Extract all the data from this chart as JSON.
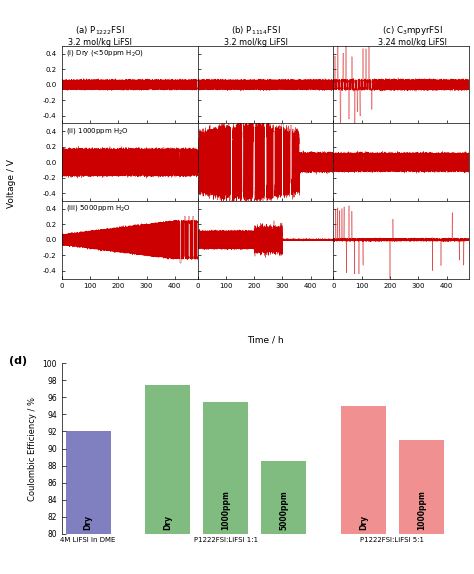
{
  "col_titles_line1": [
    "(a) P$_{1222}$FSI",
    "(b) P$_{1114}$FSI",
    "(c) C$_3$mpyrFSI"
  ],
  "col_titles_line2": [
    "3.2 mol/kg LiFSI",
    "3.2 mol/kg LiFSI",
    "3.24 mol/kg LiFSI"
  ],
  "row_labels": [
    "(i) Dry (<50ppm H$_2$O)",
    "(ii) 1000ppm H$_2$O",
    "(iii) 5000ppm H$_2$O"
  ],
  "voltage_color": "#CC0000",
  "voltage_ylim": [
    -0.5,
    0.5
  ],
  "voltage_yticks": [
    -0.4,
    -0.2,
    0.0,
    0.2,
    0.4
  ],
  "voltage_yticklabels": [
    "-0.4",
    "-0.2",
    "0.0",
    "0.2",
    "0.4"
  ],
  "time_xlim": [
    0,
    480
  ],
  "time_xticks": [
    0,
    100,
    200,
    300,
    400
  ],
  "time_xticklabels": [
    "0",
    "100",
    "200",
    "300",
    "400"
  ],
  "xlabel": "Time / h",
  "ylabel": "Voltage / V",
  "bar_categories": [
    "Dry",
    "Dry",
    "1000ppm",
    "5000ppm",
    "Dry",
    "1000ppm"
  ],
  "bar_values": [
    92.0,
    97.5,
    95.5,
    88.5,
    95.0,
    91.0
  ],
  "bar_colors": [
    "#8080c0",
    "#80bc80",
    "#80bc80",
    "#80bc80",
    "#f09090",
    "#f09090"
  ],
  "bar_ylabel": "Coulombic Efficiency / %",
  "bar_ylim": [
    80,
    100
  ],
  "bar_yticks": [
    80,
    82,
    84,
    86,
    88,
    90,
    92,
    94,
    96,
    98,
    100
  ],
  "bar_yticklabels": [
    "80",
    "82",
    "84",
    "86",
    "88",
    "90",
    "92",
    "94",
    "96",
    "98",
    "100"
  ],
  "bar_group_labels": [
    "4M LiFSI in DME",
    "P1222FSI:LiFSI 1:1",
    "P1222FSI:LiFSI 5:1"
  ],
  "bar_label": "(d)"
}
